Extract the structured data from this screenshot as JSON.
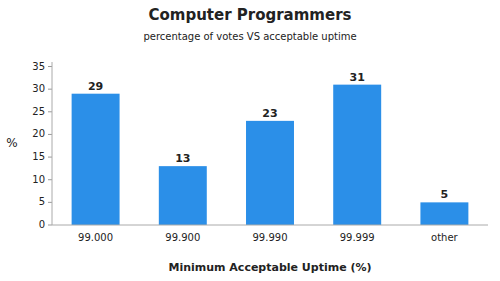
{
  "chart_data": {
    "type": "bar",
    "title": "Computer Programmers",
    "subtitle": "percentage of votes VS acceptable uptime",
    "xlabel": "Minimum Acceptable Uptime (%)",
    "ylabel": "%",
    "categories": [
      "99.000",
      "99.900",
      "99.990",
      "99.999",
      "other"
    ],
    "values": [
      29,
      13,
      23,
      31,
      5
    ],
    "color": "#2B8FE8",
    "ylim": [
      0,
      36
    ],
    "yticks": [
      0,
      5,
      10,
      15,
      20,
      25,
      30,
      35
    ],
    "grid": false,
    "data_labels": true
  }
}
